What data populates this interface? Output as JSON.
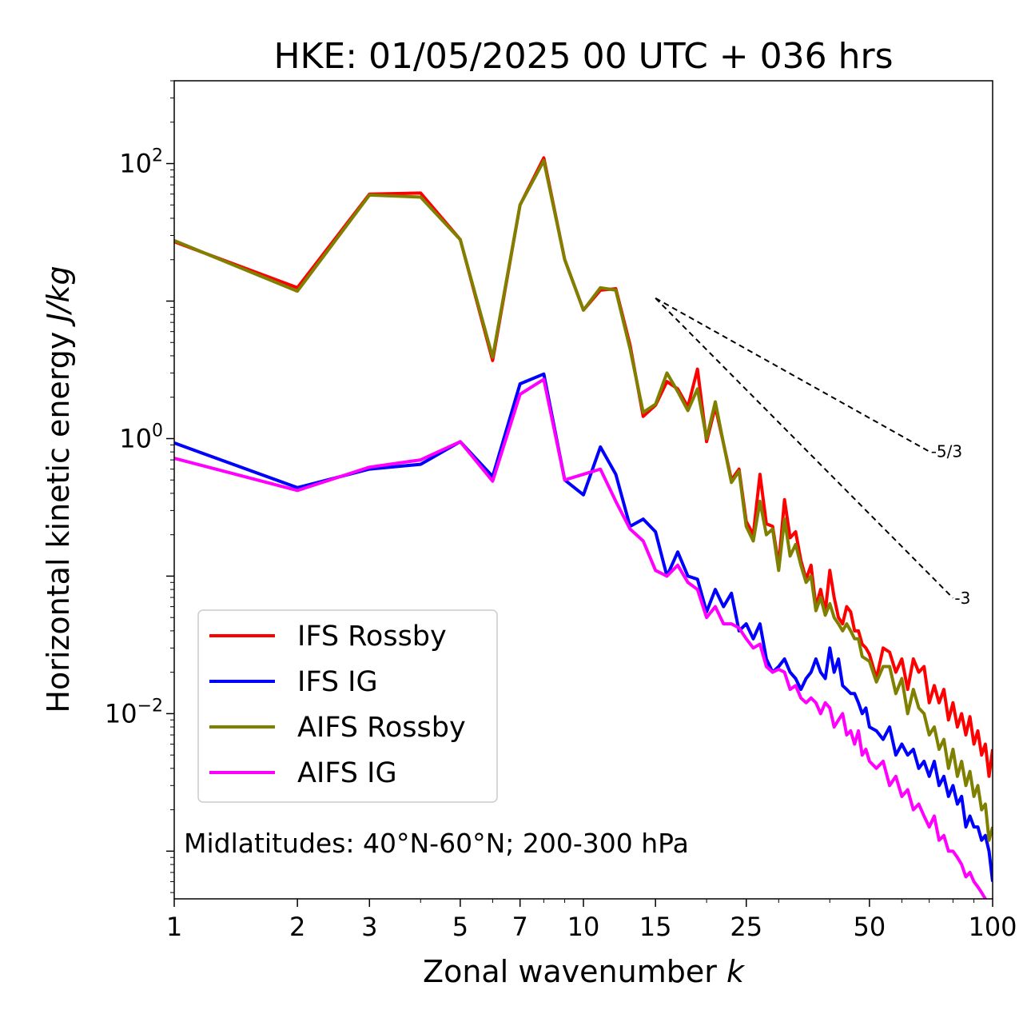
{
  "chart_data": {
    "type": "line",
    "title": "HKE: 01/05/2025 00 UTC + 036 hrs",
    "xlabel": "Zonal wavenumber",
    "xlabel_var": "k",
    "ylabel": "Horizontal kinetic energy",
    "ylabel_unit": "J/kg",
    "xscale": "log",
    "yscale": "log",
    "xlim": [
      1,
      100
    ],
    "ylim": [
      0.00045,
      400
    ],
    "xticks": [
      1,
      2,
      3,
      5,
      7,
      10,
      15,
      25,
      50,
      100
    ],
    "xtick_labels": [
      "1",
      "2",
      "3",
      "5",
      "7",
      "10",
      "15",
      "25",
      "50",
      "100"
    ],
    "yticks": [
      {
        "base": "10",
        "exp": "2",
        "value": 100
      },
      {
        "base": "10",
        "exp": "0",
        "value": 1
      },
      {
        "base": "10",
        "exp": "−2",
        "value": 0.01
      }
    ],
    "annotation": "Midlatitudes: 40°N-60°N; 200-300 hPa",
    "legend_position": "lower-left",
    "grid": false,
    "reference_slopes": [
      {
        "label": "-5/3",
        "k_start": 15,
        "e_start": 10.5,
        "k_end": 70,
        "slope": -1.6667
      },
      {
        "label": "-3",
        "k_start": 15,
        "e_start": 10.5,
        "k_end": 80,
        "slope": -3
      }
    ],
    "series": [
      {
        "name": "IFS Rossby",
        "color": "#ff0000",
        "x": [
          1,
          2,
          3,
          4,
          5,
          6,
          7,
          8,
          9,
          10,
          11,
          12,
          13,
          14,
          15,
          16,
          17,
          18,
          19,
          20,
          21,
          22,
          23,
          24,
          25,
          26,
          27,
          28,
          29,
          30,
          31,
          32,
          33,
          34,
          35,
          36,
          37,
          38,
          39,
          40,
          41,
          42,
          43,
          44,
          45,
          46,
          47,
          48,
          49,
          50,
          52,
          54,
          56,
          58,
          60,
          62,
          64,
          66,
          68,
          70,
          72,
          74,
          76,
          78,
          80,
          82,
          84,
          86,
          88,
          90,
          92,
          94,
          96,
          98,
          100
        ],
        "values": [
          27,
          12.5,
          60,
          61,
          28,
          3.7,
          50,
          110,
          20,
          8.6,
          12,
          12.3,
          4.8,
          1.45,
          1.75,
          2.6,
          2.3,
          1.7,
          3.2,
          0.95,
          1.7,
          0.92,
          0.5,
          0.6,
          0.25,
          0.2,
          0.55,
          0.24,
          0.23,
          0.12,
          0.36,
          0.19,
          0.21,
          0.13,
          0.095,
          0.12,
          0.06,
          0.08,
          0.055,
          0.11,
          0.07,
          0.05,
          0.045,
          0.06,
          0.055,
          0.04,
          0.04,
          0.032,
          0.03,
          0.027,
          0.018,
          0.03,
          0.028,
          0.02,
          0.025,
          0.015,
          0.025,
          0.02,
          0.022,
          0.012,
          0.016,
          0.012,
          0.015,
          0.009,
          0.012,
          0.008,
          0.01,
          0.007,
          0.0095,
          0.006,
          0.0075,
          0.005,
          0.006,
          0.0035,
          0.0055
        ]
      },
      {
        "name": "IFS IG",
        "color": "#0000ff",
        "x": [
          1,
          2,
          3,
          4,
          5,
          6,
          7,
          8,
          9,
          10,
          11,
          12,
          13,
          14,
          15,
          16,
          17,
          18,
          19,
          20,
          21,
          22,
          23,
          24,
          25,
          26,
          27,
          28,
          29,
          30,
          31,
          32,
          33,
          34,
          35,
          36,
          37,
          38,
          39,
          40,
          41,
          42,
          43,
          44,
          45,
          46,
          47,
          48,
          49,
          50,
          52,
          54,
          56,
          58,
          60,
          62,
          64,
          66,
          68,
          70,
          72,
          74,
          76,
          78,
          80,
          82,
          84,
          86,
          88,
          90,
          92,
          94,
          96,
          98,
          100
        ],
        "values": [
          0.93,
          0.44,
          0.6,
          0.65,
          0.95,
          0.53,
          2.5,
          2.95,
          0.5,
          0.39,
          0.87,
          0.55,
          0.23,
          0.26,
          0.21,
          0.1,
          0.15,
          0.1,
          0.095,
          0.055,
          0.08,
          0.06,
          0.075,
          0.04,
          0.045,
          0.035,
          0.045,
          0.025,
          0.02,
          0.022,
          0.025,
          0.02,
          0.018,
          0.015,
          0.018,
          0.02,
          0.025,
          0.02,
          0.018,
          0.03,
          0.02,
          0.025,
          0.016,
          0.015,
          0.014,
          0.014,
          0.012,
          0.01,
          0.011,
          0.008,
          0.0075,
          0.0065,
          0.008,
          0.005,
          0.006,
          0.005,
          0.0055,
          0.004,
          0.0045,
          0.0035,
          0.0045,
          0.003,
          0.0035,
          0.0025,
          0.003,
          0.0022,
          0.0025,
          0.0015,
          0.0018,
          0.0015,
          0.0015,
          0.0012,
          0.0013,
          0.001,
          0.0006
        ]
      },
      {
        "name": "AIFS Rossby",
        "color": "#808000",
        "x": [
          1,
          2,
          3,
          4,
          5,
          6,
          7,
          8,
          9,
          10,
          11,
          12,
          13,
          14,
          15,
          16,
          17,
          18,
          19,
          20,
          21,
          22,
          23,
          24,
          25,
          26,
          27,
          28,
          29,
          30,
          31,
          32,
          33,
          34,
          35,
          36,
          37,
          38,
          39,
          40,
          41,
          42,
          43,
          44,
          45,
          46,
          47,
          48,
          49,
          50,
          52,
          54,
          56,
          58,
          60,
          62,
          64,
          66,
          68,
          70,
          72,
          74,
          76,
          78,
          80,
          82,
          84,
          86,
          88,
          90,
          92,
          94,
          96,
          98,
          100
        ],
        "values": [
          27.5,
          11.8,
          59,
          57,
          28,
          3.9,
          50,
          105,
          20,
          8.6,
          12.5,
          12,
          4.5,
          1.55,
          1.78,
          3.0,
          2.2,
          1.6,
          2.3,
          1.0,
          1.85,
          0.92,
          0.48,
          0.58,
          0.23,
          0.18,
          0.35,
          0.2,
          0.22,
          0.11,
          0.26,
          0.14,
          0.17,
          0.12,
          0.09,
          0.1,
          0.056,
          0.07,
          0.052,
          0.063,
          0.05,
          0.045,
          0.04,
          0.045,
          0.04,
          0.035,
          0.035,
          0.026,
          0.025,
          0.024,
          0.017,
          0.022,
          0.022,
          0.014,
          0.018,
          0.01,
          0.015,
          0.011,
          0.01,
          0.007,
          0.008,
          0.0055,
          0.0065,
          0.004,
          0.0055,
          0.0035,
          0.0045,
          0.003,
          0.0038,
          0.0025,
          0.003,
          0.002,
          0.0022,
          0.0012,
          0.0015
        ]
      },
      {
        "name": "AIFS IG",
        "color": "#ff00ff",
        "x": [
          1,
          2,
          3,
          4,
          5,
          6,
          7,
          8,
          9,
          10,
          11,
          12,
          13,
          14,
          15,
          16,
          17,
          18,
          19,
          20,
          21,
          22,
          23,
          24,
          25,
          26,
          27,
          28,
          29,
          30,
          31,
          32,
          33,
          34,
          35,
          36,
          37,
          38,
          39,
          40,
          41,
          42,
          43,
          44,
          45,
          46,
          47,
          48,
          49,
          50,
          52,
          54,
          56,
          58,
          60,
          62,
          64,
          66,
          68,
          70,
          72,
          74,
          76,
          78,
          80,
          82,
          84,
          86,
          88,
          90,
          92,
          94,
          96,
          98,
          100
        ],
        "values": [
          0.72,
          0.42,
          0.62,
          0.7,
          0.95,
          0.49,
          2.1,
          2.7,
          0.5,
          0.55,
          0.6,
          0.35,
          0.22,
          0.18,
          0.11,
          0.1,
          0.12,
          0.09,
          0.08,
          0.05,
          0.06,
          0.045,
          0.045,
          0.042,
          0.035,
          0.03,
          0.032,
          0.022,
          0.02,
          0.021,
          0.02,
          0.015,
          0.016,
          0.013,
          0.012,
          0.013,
          0.012,
          0.01,
          0.012,
          0.011,
          0.008,
          0.009,
          0.01,
          0.007,
          0.0075,
          0.006,
          0.0075,
          0.005,
          0.0055,
          0.0045,
          0.004,
          0.0045,
          0.003,
          0.0035,
          0.0025,
          0.0028,
          0.002,
          0.0022,
          0.0018,
          0.0015,
          0.0018,
          0.0012,
          0.0013,
          0.001,
          0.001,
          0.0009,
          0.0008,
          0.00065,
          0.0007,
          0.0006,
          0.00055,
          0.0005,
          0.00045,
          0.0004,
          0.00035
        ]
      }
    ]
  }
}
